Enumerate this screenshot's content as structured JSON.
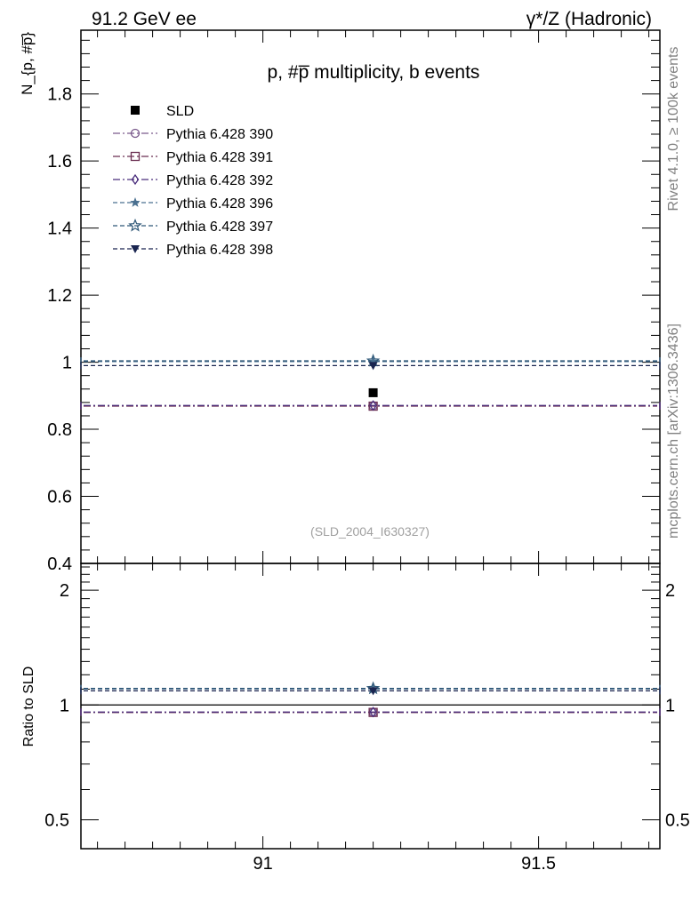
{
  "header": {
    "left": "91.2 GeV ee",
    "right": "γ*/Z (Hadronic)"
  },
  "side_labels": {
    "rivet": "Rivet 4.1.0, ≥ 100k events",
    "mcplots": "mcplots.cern.ch [arXiv:1306.3436]"
  },
  "chart_data": [
    {
      "type": "scatter",
      "panel": "main",
      "title": "p, #p̅ multiplicity, b events",
      "ylabel": "N_{p, #p̅}",
      "xlabel": "",
      "xlim": [
        90.67,
        91.72
      ],
      "ylim": [
        0.4,
        1.99
      ],
      "y_ticks": [
        0.4,
        0.6,
        0.8,
        1,
        1.2,
        1.4,
        1.6,
        1.8
      ],
      "y_tick_labels": [
        "0.4",
        "0.6",
        "0.8",
        "1",
        "1.2",
        "1.4",
        "1.6",
        "1.8"
      ],
      "watermark": "(SLD_2004_I630327)",
      "legend_position": "top-left",
      "data_series": {
        "name": "SLD",
        "x": [
          91.2
        ],
        "y": [
          0.909
        ],
        "marker": "square",
        "color": "#000000"
      },
      "series": [
        {
          "name": "Pythia 6.428 390",
          "x": [
            91.2
          ],
          "y": [
            0.87
          ],
          "marker": "circle-open",
          "line": "dashdot",
          "color": "#7a5a8c"
        },
        {
          "name": "Pythia 6.428 391",
          "x": [
            91.2
          ],
          "y": [
            0.869
          ],
          "marker": "square-open",
          "line": "dashdot",
          "color": "#6b2f52"
        },
        {
          "name": "Pythia 6.428 392",
          "x": [
            91.2
          ],
          "y": [
            0.871
          ],
          "marker": "diamond-open",
          "line": "dashdot",
          "color": "#4a2d7c"
        },
        {
          "name": "Pythia 6.428 396",
          "x": [
            91.2
          ],
          "y": [
            1.002
          ],
          "marker": "star",
          "line": "dashed",
          "color": "#4a7090"
        },
        {
          "name": "Pythia 6.428 397",
          "x": [
            91.2
          ],
          "y": [
            1.004
          ],
          "marker": "star-open",
          "line": "dashed",
          "color": "#2f5878"
        },
        {
          "name": "Pythia 6.428 398",
          "x": [
            91.2
          ],
          "y": [
            0.99
          ],
          "marker": "triangle-down",
          "line": "dashed",
          "color": "#1a2550"
        }
      ]
    },
    {
      "type": "scatter",
      "panel": "ratio",
      "ylabel": "Ratio to SLD",
      "xlabel": "",
      "xlim": [
        90.67,
        91.72
      ],
      "ylim": [
        0.42,
        2.35
      ],
      "y_scale": "log",
      "y_ticks": [
        0.5,
        1,
        2
      ],
      "y_tick_labels": [
        "0.5",
        "1",
        "2"
      ],
      "x_ticks": [
        91,
        91.5
      ],
      "x_tick_labels": [
        "91",
        "91.5"
      ],
      "reference": 1,
      "series": [
        {
          "name": "Pythia 6.428 390",
          "x": [
            91.2
          ],
          "y": [
            0.957
          ],
          "marker": "circle-open",
          "line": "dashdot",
          "color": "#7a5a8c"
        },
        {
          "name": "Pythia 6.428 391",
          "x": [
            91.2
          ],
          "y": [
            0.956
          ],
          "marker": "square-open",
          "line": "dashdot",
          "color": "#6b2f52"
        },
        {
          "name": "Pythia 6.428 392",
          "x": [
            91.2
          ],
          "y": [
            0.958
          ],
          "marker": "diamond-open",
          "line": "dashdot",
          "color": "#4a2d7c"
        },
        {
          "name": "Pythia 6.428 396",
          "x": [
            91.2
          ],
          "y": [
            1.102
          ],
          "marker": "star",
          "line": "dashed",
          "color": "#4a7090"
        },
        {
          "name": "Pythia 6.428 397",
          "x": [
            91.2
          ],
          "y": [
            1.105
          ],
          "marker": "star-open",
          "line": "dashed",
          "color": "#2f5878"
        },
        {
          "name": "Pythia 6.428 398",
          "x": [
            91.2
          ],
          "y": [
            1.089
          ],
          "marker": "triangle-down",
          "line": "dashed",
          "color": "#1a2550"
        }
      ]
    }
  ]
}
